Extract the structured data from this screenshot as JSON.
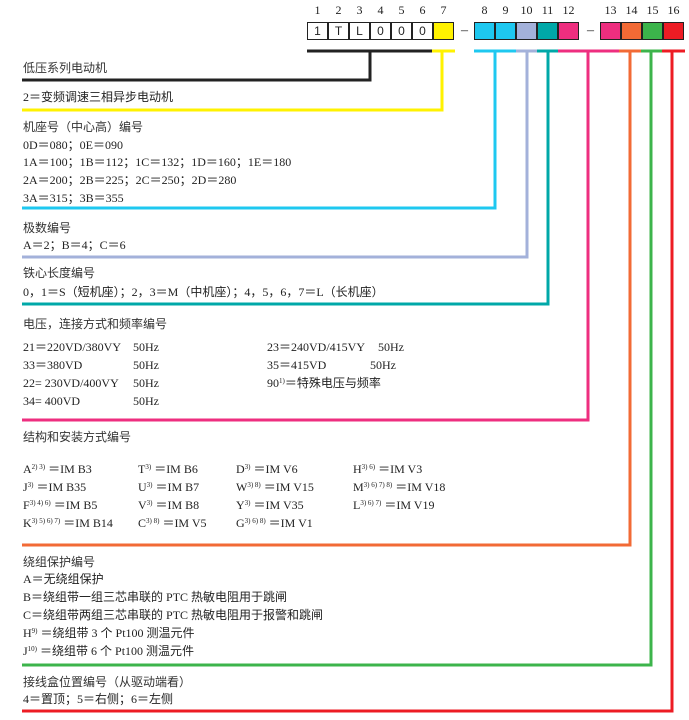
{
  "code_header": {
    "positions": [
      "1",
      "2",
      "3",
      "4",
      "5",
      "6",
      "7",
      "8",
      "9",
      "10",
      "11",
      "12",
      "13",
      "14",
      "15",
      "16"
    ],
    "fixed_chars": [
      "1",
      "T",
      "L",
      "0",
      "0",
      "0"
    ],
    "separator": "–",
    "colors": {
      "black": "#222222",
      "yellow": "#fff200",
      "cyan": "#1ec8f0",
      "lavender": "#a3b1da",
      "teal": "#00a8a8",
      "pink": "#ee2e7f",
      "orange": "#f26a35",
      "green": "#3cb44b",
      "red": "#ed1c24"
    }
  },
  "sections": {
    "series": {
      "title": "低压系列电动机"
    },
    "pos7": {
      "line": "2＝变频调速三相异步电动机"
    },
    "frame": {
      "title": "机座号（中心高）编号",
      "lines": [
        "0D＝080；0E＝090",
        "1A＝100；1B＝112；1C＝132；1D＝160；1E＝180",
        "2A＝200；2B＝225；2C＝250；2D＝280",
        "3A＝315；3B＝355"
      ]
    },
    "poles": {
      "title": "极数编号",
      "line": "A＝2；B＝4；C＝6"
    },
    "core": {
      "title": "铁心长度编号",
      "line": "0，1＝S（短机座）；2，3＝M（中机座）；4，5，6，7＝L（长机座）"
    },
    "voltage": {
      "title": "电压，连接方式和频率编号",
      "left": [
        {
          "code": "21＝220VD/380VY",
          "freq": "50Hz"
        },
        {
          "code": "33＝380VD",
          "freq": "50Hz"
        },
        {
          "code": "22= 230VD/400VY",
          "freq": "50Hz"
        },
        {
          "code": "34= 400VD",
          "freq": "50Hz"
        }
      ],
      "right": [
        {
          "code": "23＝240VD/415VY",
          "freq": "50Hz"
        },
        {
          "code": "35＝415VD",
          "freq": "50Hz"
        },
        {
          "code": "90",
          "sup": "1)",
          "rest": "＝特殊电压与频率"
        }
      ]
    },
    "mounting": {
      "title": "结构和安装方式编号",
      "cols": [
        [
          {
            "k": "A",
            "s": "2) 3)",
            "v": "＝IM B3"
          },
          {
            "k": "J",
            "s": "3)",
            "v": "＝IM B35"
          },
          {
            "k": "F",
            "s": "3) 4) 6)",
            "v": "＝IM B5"
          },
          {
            "k": "K",
            "s": "3) 5) 6) 7)",
            "v": "＝IM B14"
          }
        ],
        [
          {
            "k": "T",
            "s": "3)",
            "v": "＝IM B6"
          },
          {
            "k": "U",
            "s": "3)",
            "v": "＝IM B7"
          },
          {
            "k": "V",
            "s": "3)",
            "v": "＝IM B8"
          },
          {
            "k": "C",
            "s": "3) 8)",
            "v": "＝IM V5"
          }
        ],
        [
          {
            "k": "D",
            "s": "3)",
            "v": "＝IM V6"
          },
          {
            "k": "W",
            "s": "3) 8)",
            "v": "＝IM V15"
          },
          {
            "k": "Y",
            "s": "3)",
            "v": "＝IM V35"
          },
          {
            "k": "G",
            "s": "3) 6) 8)",
            "v": "＝IM V1"
          }
        ],
        [
          {
            "k": "H",
            "s": "3) 6)",
            "v": "＝IM V3"
          },
          {
            "k": "M",
            "s": "3) 6) 7) 8)",
            "v": "＝IM V18"
          },
          {
            "k": "L",
            "s": "3) 6) 7)",
            "v": "＝IM V19"
          }
        ]
      ]
    },
    "winding": {
      "title": "绕组保护编号",
      "lines": [
        {
          "k": "A",
          "s": "",
          "v": "＝无绕组保护"
        },
        {
          "k": "B",
          "s": "",
          "v": "＝绕组带一组三芯串联的 PTC 热敏电阻用于跳闸"
        },
        {
          "k": "C",
          "s": "",
          "v": "＝绕组带两组三芯串联的 PTC 热敏电阻用于报警和跳闸"
        },
        {
          "k": "H",
          "s": "9)",
          "v": "  ＝绕组带 3 个 Pt100 测温元件"
        },
        {
          "k": "J",
          "s": "10)",
          "v": "  ＝绕组带 6 个 Pt100 测温元件"
        }
      ]
    },
    "terminal": {
      "title": "接线盒位置编号（从驱动端看）",
      "line": "4＝置顶；5＝右侧；6＝左侧"
    }
  }
}
